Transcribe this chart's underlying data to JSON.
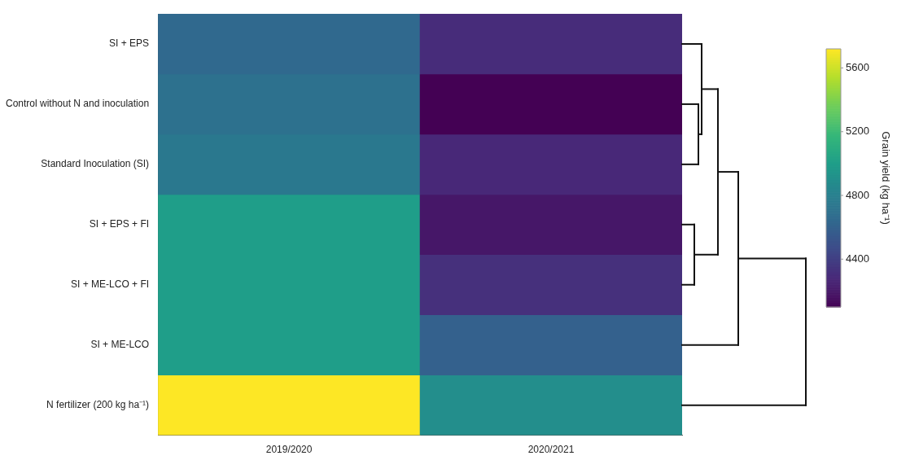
{
  "chart_data": {
    "type": "heatmap",
    "categories": [
      "2019/2020",
      "2020/2021"
    ],
    "y_categories": [
      "SI + EPS",
      "Control without N and inoculation",
      "Standard Inoculation (SI)",
      "SI + EPS + FI",
      "SI + ME-LCO + FI",
      "SI + ME-LCO",
      "N fertilizer (200 kg ha⁻¹)"
    ],
    "cells": [
      [
        4650,
        4300
      ],
      [
        4700,
        4100
      ],
      [
        4750,
        4280
      ],
      [
        5000,
        4200
      ],
      [
        5000,
        4320
      ],
      [
        5000,
        4600
      ],
      [
        5720,
        4900
      ]
    ],
    "clim": [
      4100,
      5720
    ],
    "cticks": [
      4400,
      4800,
      5200,
      5600
    ],
    "clabel": "Grain yield (kg ha⁻¹)"
  }
}
